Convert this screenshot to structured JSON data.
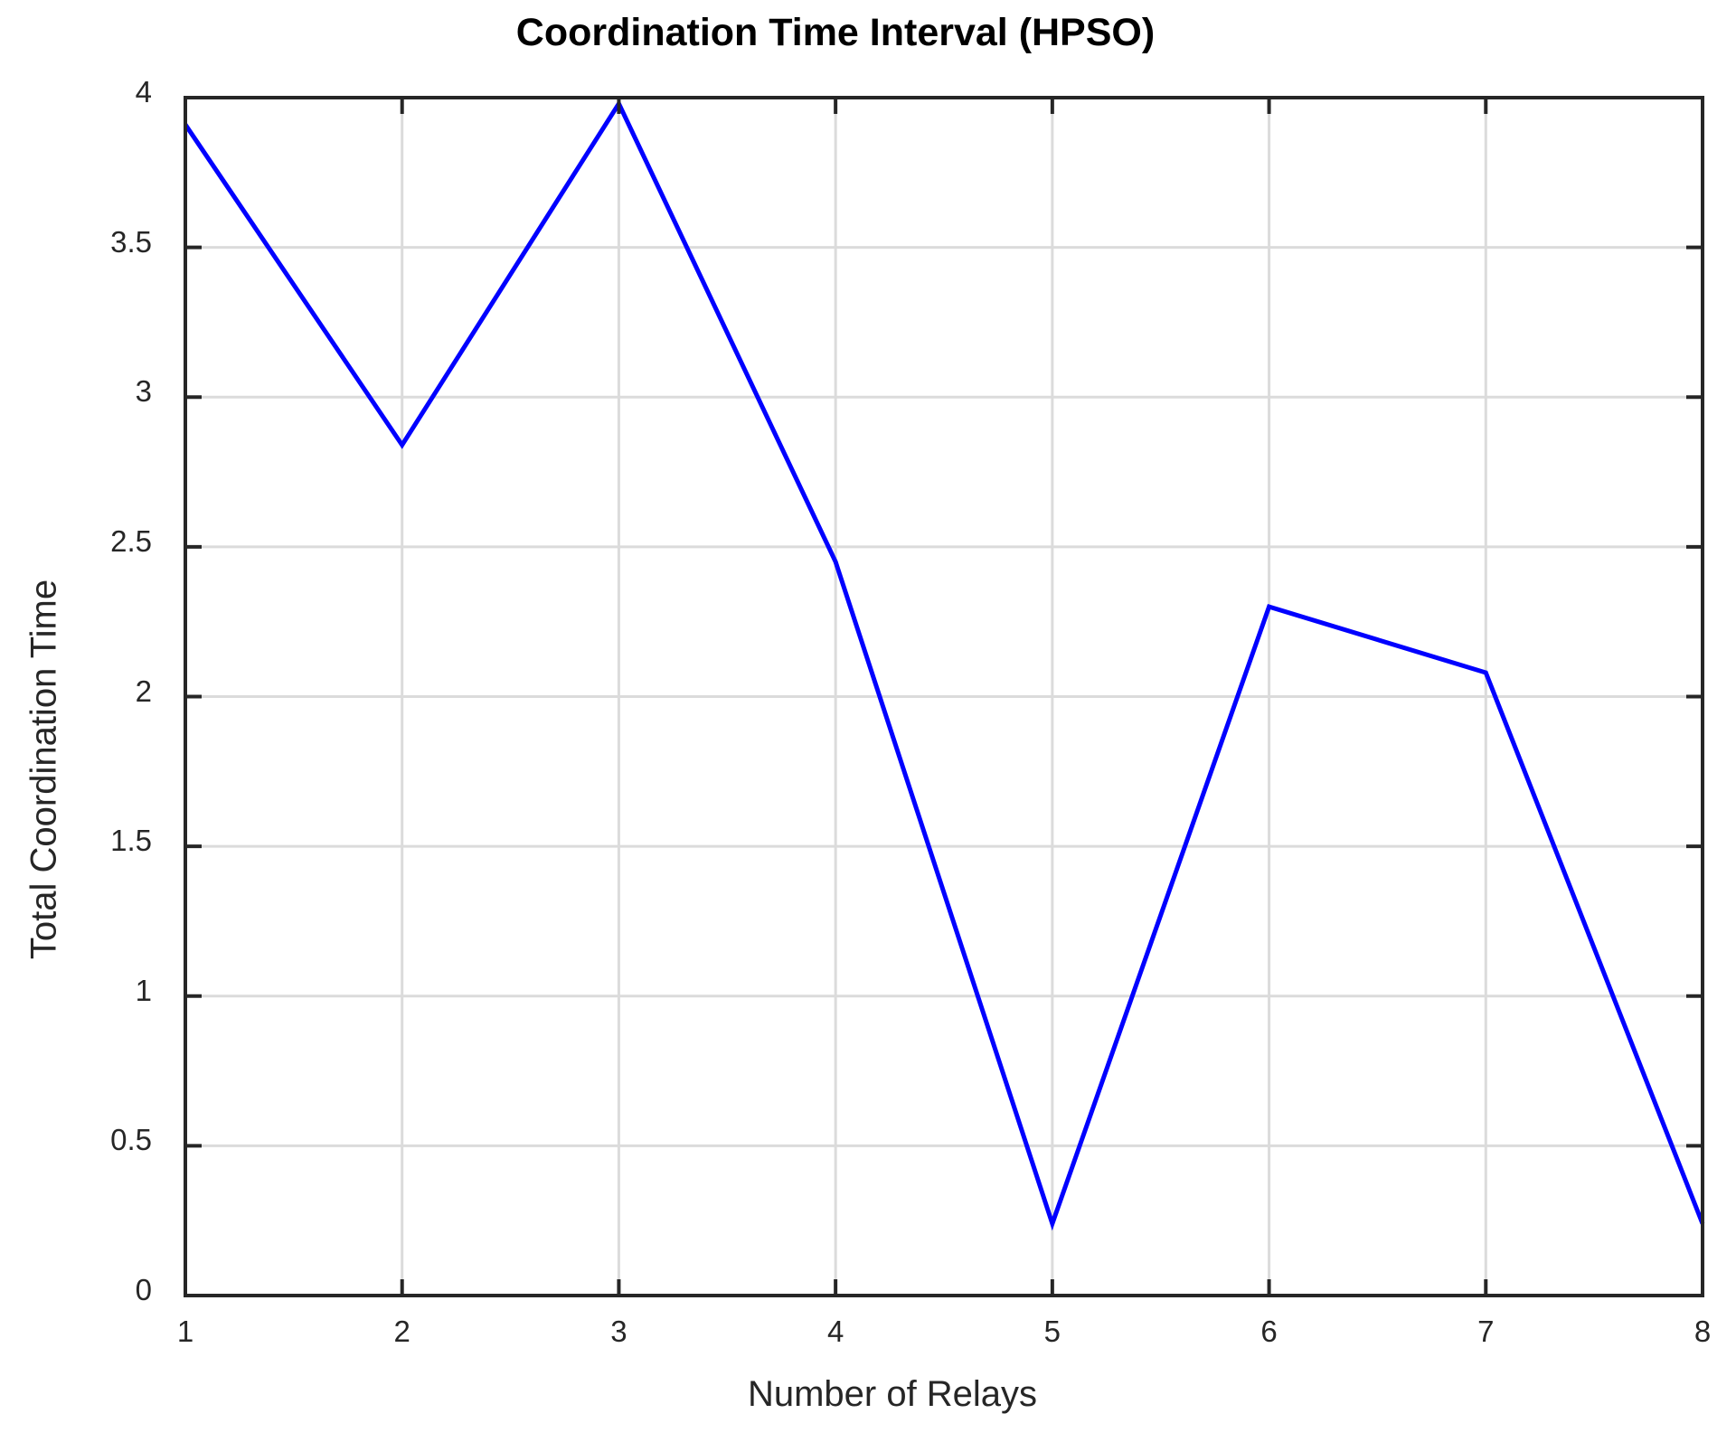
{
  "chart_data": {
    "type": "line",
    "title": "Coordination Time Interval (HPSO)",
    "xlabel": "Number of Relays",
    "ylabel": "Total Coordination Time",
    "x": [
      1,
      2,
      3,
      4,
      5,
      6,
      7,
      8
    ],
    "values": [
      3.91,
      2.84,
      3.98,
      2.45,
      0.24,
      2.3,
      2.08,
      0.24
    ],
    "xlim": [
      1,
      8
    ],
    "ylim": [
      0,
      4
    ],
    "x_ticks": [
      1,
      2,
      3,
      4,
      5,
      6,
      7,
      8
    ],
    "x_tick_labels": [
      "1",
      "2",
      "3",
      "4",
      "5",
      "6",
      "7",
      "8"
    ],
    "y_ticks": [
      0,
      0.5,
      1,
      1.5,
      2,
      2.5,
      3,
      3.5,
      4
    ],
    "y_tick_labels": [
      "0",
      "0.5",
      "1",
      "1.5",
      "2",
      "2.5",
      "3",
      "3.5",
      "4"
    ],
    "grid": true,
    "legend_position": "none",
    "line_color": "#0000FF",
    "grid_color": "#DBDBDB",
    "axis_color": "#262626",
    "background_color": "#FFFFFF"
  }
}
